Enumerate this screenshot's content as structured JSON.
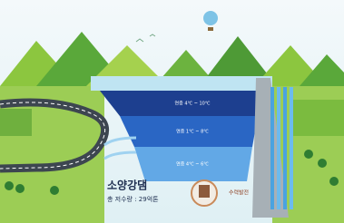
{
  "title": "소양강댐",
  "subtitle": "총 저수량 : 29억톤",
  "layers": [
    "연중 4℃ ~ 10℃",
    "연중 1℃ ~ 8℃",
    "연중 4℃ ~ 6℃"
  ],
  "plant_label": "수력발전"
}
